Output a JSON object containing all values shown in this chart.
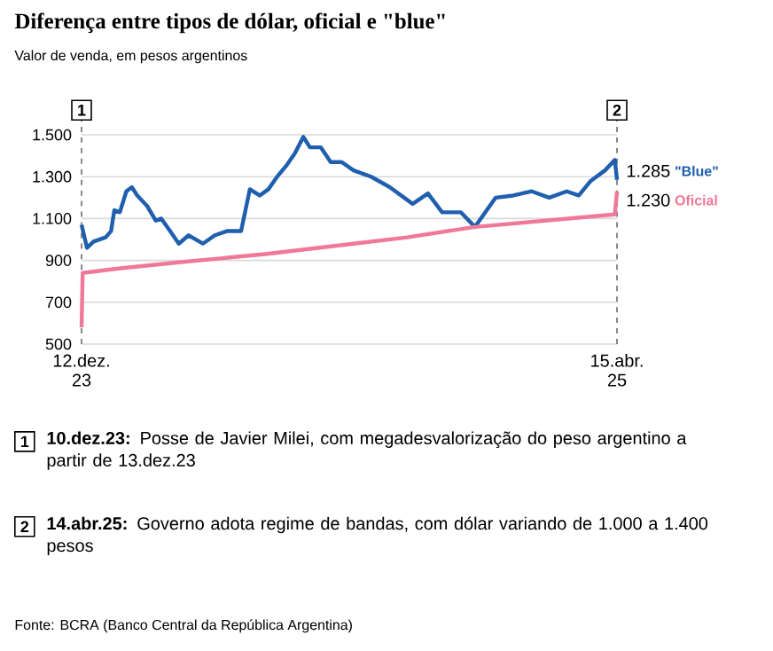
{
  "chart_data": {
    "type": "line",
    "title": "Diferença entre tipos de dólar, oficial e \"blue\"",
    "subtitle": "Valor de venda, em pesos argentinos",
    "xlim": [
      "2023-12-12",
      "2025-04-15"
    ],
    "xticks": [
      {
        "value": "2023-12-12",
        "label": "12.dez. 23"
      },
      {
        "value": "2025-04-15",
        "label": "15.abr. 25"
      }
    ],
    "ylim": [
      500,
      1500
    ],
    "yticks": [
      {
        "value": 500,
        "label": "500"
      },
      {
        "value": 700,
        "label": "700"
      },
      {
        "value": 900,
        "label": "900"
      },
      {
        "value": 1100,
        "label": "1.100"
      },
      {
        "value": 1300,
        "label": "1.300"
      },
      {
        "value": 1500,
        "label": "1.500"
      }
    ],
    "grid": "y",
    "series": [
      {
        "name": "\"Blue\"",
        "color": "#1f5fae",
        "x": [
          "2023-12-12",
          "2023-12-17",
          "2023-12-23",
          "2024-01-03",
          "2024-01-08",
          "2024-01-11",
          "2024-01-16",
          "2024-01-22",
          "2024-01-27",
          "2024-02-01",
          "2024-02-10",
          "2024-02-18",
          "2024-02-23",
          "2024-03-02",
          "2024-03-10",
          "2024-03-19",
          "2024-04-01",
          "2024-04-12",
          "2024-04-23",
          "2024-05-06",
          "2024-05-14",
          "2024-05-23",
          "2024-05-31",
          "2024-06-08",
          "2024-06-16",
          "2024-06-24",
          "2024-07-02",
          "2024-07-08",
          "2024-07-18",
          "2024-07-27",
          "2024-08-06",
          "2024-08-17",
          "2024-09-02",
          "2024-09-19",
          "2024-10-10",
          "2024-10-24",
          "2024-11-06",
          "2024-11-23",
          "2024-12-06",
          "2024-12-25",
          "2025-01-10",
          "2025-01-27",
          "2025-02-12",
          "2025-02-28",
          "2025-03-11",
          "2025-03-22",
          "2025-04-04",
          "2025-04-13",
          "2025-04-15"
        ],
        "values": [
          1070,
          960,
          990,
          1010,
          1040,
          1140,
          1130,
          1230,
          1250,
          1210,
          1160,
          1090,
          1100,
          1040,
          980,
          1020,
          980,
          1020,
          1040,
          1040,
          1240,
          1210,
          1240,
          1300,
          1350,
          1410,
          1490,
          1440,
          1440,
          1370,
          1370,
          1330,
          1300,
          1250,
          1170,
          1220,
          1130,
          1130,
          1060,
          1200,
          1210,
          1230,
          1200,
          1230,
          1210,
          1280,
          1330,
          1380,
          1285
        ]
      },
      {
        "name": "Oficial",
        "color": "#f07898",
        "x": [
          "2023-12-12",
          "2023-12-13",
          "2024-01-13",
          "2024-03-08",
          "2024-05-28",
          "2024-08-17",
          "2024-10-05",
          "2024-12-06",
          "2025-04-13",
          "2025-04-15"
        ],
        "values": [
          580,
          840,
          860,
          890,
          930,
          980,
          1010,
          1060,
          1120,
          1230
        ]
      }
    ],
    "ref_lines": [
      {
        "axis": "x",
        "value": "2023-12-12",
        "label": "1",
        "color": "#888888",
        "line_style": "dashed"
      },
      {
        "axis": "x",
        "value": "2025-04-15",
        "label": "2",
        "color": "#888888",
        "line_style": "dashed"
      }
    ],
    "annotations": [
      {
        "text": "1.285",
        "x": "2025-04-15",
        "y": 1285
      },
      {
        "text": "1.230",
        "x": "2025-04-15",
        "y": 1230
      },
      "**10.dez.23:** Posse de Javier Milei, com megadesvalorização do peso argentino a partir de 13.dez.23",
      "**14.abr.25:** Governo adota regime de bandas, com dólar variando de 1.000 a 1.400 pesos",
      "Fonte: BCRA (Banco Central da República Argentina)"
    ]
  }
}
